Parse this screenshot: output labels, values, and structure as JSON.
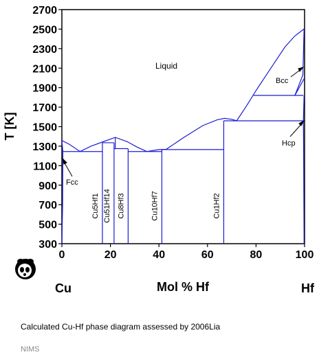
{
  "chart_data": {
    "type": "phase-diagram",
    "xlabel": "Mol % Hf",
    "ylabel": "T [K]",
    "xlim": [
      0,
      100
    ],
    "ylim": [
      300,
      2700
    ],
    "x_ticks": [
      "0",
      "20",
      "40",
      "60",
      "80",
      "100"
    ],
    "y_ticks": [
      "300",
      "500",
      "700",
      "900",
      "1100",
      "1300",
      "1500",
      "1700",
      "1900",
      "2100",
      "2300",
      "2500",
      "2700"
    ],
    "left_element": "Cu",
    "right_element": "Hf",
    "region_label": "Liquid",
    "phases": [
      "Fcc",
      "Bcc",
      "Hcp"
    ],
    "compounds": [
      {
        "formula": "Cu5Hf1",
        "mol_pct_hf": 16.7
      },
      {
        "formula": "Cu51Hf14",
        "mol_pct_hf": 21.5
      },
      {
        "formula": "Cu8Hf3",
        "mol_pct_hf": 27.3
      },
      {
        "formula": "Cu10Hf7",
        "mol_pct_hf": 41.2
      },
      {
        "formula": "Cu1Hf2",
        "mol_pct_hf": 66.7
      }
    ],
    "liquidus": [
      [
        0,
        1358
      ],
      [
        3,
        1320
      ],
      [
        7.5,
        1245
      ],
      [
        12,
        1300
      ],
      [
        17,
        1345
      ],
      [
        22,
        1390
      ],
      [
        27,
        1345
      ],
      [
        31,
        1290
      ],
      [
        35,
        1245
      ],
      [
        40,
        1265
      ],
      [
        43,
        1268
      ],
      [
        50,
        1385
      ],
      [
        58,
        1510
      ],
      [
        64,
        1570
      ],
      [
        67,
        1585
      ],
      [
        70,
        1575
      ],
      [
        72,
        1560
      ],
      [
        76,
        1710
      ],
      [
        80,
        1870
      ],
      [
        84,
        2020
      ],
      [
        88,
        2170
      ],
      [
        92,
        2320
      ],
      [
        96,
        2430
      ],
      [
        100,
        2506
      ]
    ],
    "invariant_lines": [
      {
        "t": 1245,
        "x_range": [
          0,
          16.7
        ]
      },
      {
        "t": 1335,
        "x_range": [
          16.7,
          21.5
        ]
      },
      {
        "t": 1275,
        "x_range": [
          21.5,
          27.3
        ]
      },
      {
        "t": 1245,
        "x_range": [
          27.3,
          41.2
        ]
      },
      {
        "t": 1265,
        "x_range": [
          41.2,
          66.7
        ]
      },
      {
        "t": 1560,
        "x_range": [
          66.7,
          99.5
        ]
      },
      {
        "t": 1820,
        "x_range": [
          79,
          99.5
        ]
      }
    ]
  },
  "caption": "Calculated Cu-Hf phase diagram assessed by 2006Lia",
  "credit": "NIMS"
}
